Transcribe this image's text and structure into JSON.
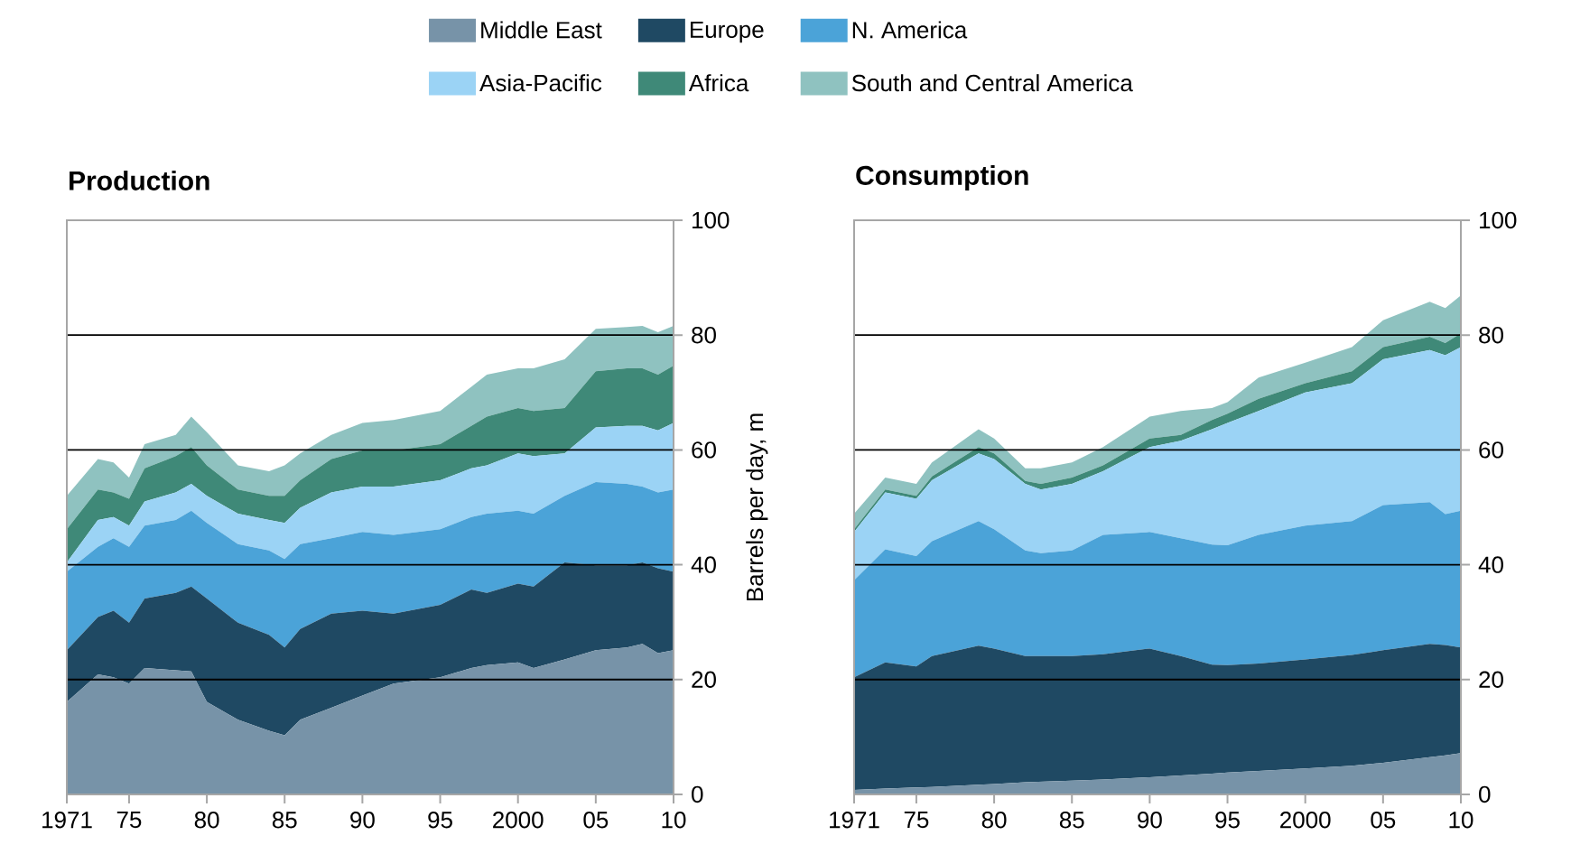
{
  "chart_data": [
    {
      "type": "area",
      "stacked": true,
      "title": "Production",
      "ylabel": "Barrels per day, m",
      "x": [
        1971,
        1973,
        1974,
        1975,
        1976,
        1978,
        1979,
        1980,
        1982,
        1984,
        1985,
        1986,
        1988,
        1990,
        1992,
        1995,
        1997,
        1998,
        2000,
        2001,
        2003,
        2005,
        2007,
        2008,
        2009,
        2010
      ],
      "xlim": [
        1971,
        2010
      ],
      "xticks": [
        1971,
        {
          "value": 1975,
          "label": "75"
        },
        {
          "value": 1980,
          "label": "80"
        },
        {
          "value": 1985,
          "label": "85"
        },
        {
          "value": 1990,
          "label": "90"
        },
        {
          "value": 1995,
          "label": "95"
        },
        2000,
        {
          "value": 2005,
          "label": "05"
        },
        {
          "value": 2010,
          "label": "10"
        }
      ],
      "ylim": [
        0,
        100
      ],
      "yticks": [
        0,
        20,
        40,
        60,
        80,
        100
      ],
      "grid": "y",
      "legend": "top",
      "series": [
        {
          "name": "Middle East",
          "color": "#7793a8",
          "values": [
            16.1,
            20.9,
            20.4,
            19.3,
            22.0,
            21.6,
            21.4,
            16.1,
            13.0,
            11.1,
            10.3,
            13.0,
            15.1,
            17.2,
            19.3,
            20.4,
            22.0,
            22.5,
            23.0,
            22.0,
            23.5,
            25.1,
            25.6,
            26.2,
            24.6,
            25.1
          ]
        },
        {
          "name": "Europe",
          "color": "#1f4963",
          "values": [
            9.0,
            10.0,
            11.6,
            10.6,
            12.1,
            13.5,
            14.8,
            18.0,
            16.9,
            16.7,
            15.3,
            15.8,
            16.4,
            14.8,
            12.2,
            12.6,
            13.7,
            12.6,
            13.7,
            14.2,
            16.9,
            14.8,
            14.3,
            14.2,
            14.8,
            13.7
          ]
        },
        {
          "name": "N. America",
          "color": "#4ba3d8",
          "values": [
            13.7,
            12.2,
            12.6,
            13.2,
            12.7,
            12.7,
            13.2,
            13.2,
            13.7,
            14.7,
            15.4,
            14.8,
            13.1,
            13.7,
            13.7,
            13.2,
            12.6,
            13.8,
            12.7,
            12.7,
            11.6,
            14.5,
            14.2,
            13.2,
            13.2,
            14.3
          ]
        },
        {
          "name": "Asia-Pacific",
          "color": "#9bd3f5",
          "values": [
            1.6,
            4.7,
            3.7,
            3.7,
            4.2,
            4.8,
            4.7,
            4.7,
            5.3,
            5.3,
            6.3,
            6.3,
            8.0,
            7.9,
            8.4,
            8.5,
            8.5,
            8.4,
            10.0,
            10.0,
            7.4,
            9.5,
            10.1,
            10.6,
            10.8,
            11.6
          ]
        },
        {
          "name": "Africa",
          "color": "#3f8978",
          "values": [
            5.8,
            5.3,
            4.3,
            4.7,
            5.8,
            6.3,
            6.4,
            5.3,
            4.2,
            4.2,
            4.7,
            4.8,
            5.8,
            6.3,
            6.3,
            6.3,
            7.4,
            8.5,
            7.9,
            7.9,
            7.9,
            9.8,
            10.0,
            10.0,
            9.7,
            10.0
          ]
        },
        {
          "name": "South and Central America",
          "color": "#8fc2c0",
          "values": [
            5.8,
            5.3,
            5.2,
            3.7,
            4.2,
            3.7,
            5.3,
            5.8,
            4.2,
            4.3,
            5.3,
            4.7,
            4.2,
            4.8,
            5.3,
            5.8,
            6.8,
            7.3,
            6.9,
            7.4,
            8.5,
            7.4,
            7.2,
            7.4,
            7.4,
            6.9
          ]
        }
      ]
    },
    {
      "type": "area",
      "stacked": true,
      "title": "Consumption",
      "x": [
        1971,
        1973,
        1975,
        1976,
        1979,
        1980,
        1982,
        1983,
        1985,
        1987,
        1990,
        1992,
        1994,
        1995,
        1997,
        2000,
        2003,
        2005,
        2008,
        2009,
        2010
      ],
      "xlim": [
        1971,
        2010
      ],
      "xticks": [
        1971,
        {
          "value": 1975,
          "label": "75"
        },
        {
          "value": 1980,
          "label": "80"
        },
        {
          "value": 1985,
          "label": "85"
        },
        {
          "value": 1990,
          "label": "90"
        },
        {
          "value": 1995,
          "label": "95"
        },
        2000,
        {
          "value": 2005,
          "label": "05"
        },
        {
          "value": 2010,
          "label": "10"
        }
      ],
      "ylim": [
        0,
        100
      ],
      "yticks": [
        0,
        20,
        40,
        60,
        80,
        100
      ],
      "grid": "y",
      "series": [
        {
          "color": "#7793a8",
          "values": [
            0.8,
            1.0,
            1.2,
            1.3,
            1.7,
            1.8,
            2.1,
            2.2,
            2.4,
            2.6,
            3.0,
            3.3,
            3.6,
            3.8,
            4.1,
            4.5,
            5.0,
            5.5,
            6.5,
            6.8,
            7.2
          ]
        },
        {
          "color": "#1f4963",
          "values": [
            19.6,
            22.0,
            21.1,
            22.8,
            24.2,
            23.6,
            22.0,
            21.9,
            21.7,
            21.8,
            22.4,
            20.8,
            19.0,
            18.7,
            18.7,
            19.0,
            19.3,
            19.6,
            19.7,
            19.2,
            18.4
          ]
        },
        {
          "color": "#4ba3d8",
          "values": [
            16.9,
            19.7,
            19.2,
            20.0,
            21.7,
            20.8,
            18.4,
            17.9,
            18.4,
            20.8,
            20.3,
            20.5,
            20.9,
            20.9,
            22.4,
            23.3,
            23.3,
            25.3,
            24.7,
            22.8,
            23.8
          ]
        },
        {
          "color": "#9bd3f5",
          "values": [
            8.4,
            9.9,
            10.0,
            10.6,
            11.8,
            12.2,
            11.6,
            11.1,
            11.6,
            11.1,
            14.8,
            17.0,
            20.1,
            21.3,
            21.6,
            23.2,
            24.0,
            25.4,
            26.5,
            27.7,
            28.5
          ]
        },
        {
          "color": "#3f8978",
          "values": [
            0.5,
            0.5,
            0.5,
            0.7,
            1.1,
            1.0,
            0.5,
            1.0,
            1.1,
            1.0,
            1.5,
            1.0,
            1.6,
            1.6,
            2.1,
            1.6,
            2.1,
            2.1,
            2.3,
            2.1,
            2.4
          ]
        },
        {
          "color": "#8fc2c0",
          "values": [
            2.7,
            2.1,
            2.1,
            2.4,
            3.1,
            2.6,
            2.2,
            2.7,
            2.6,
            3.2,
            3.8,
            4.2,
            2.1,
            2.0,
            3.7,
            3.6,
            4.2,
            4.7,
            6.1,
            6.1,
            6.6
          ]
        }
      ]
    }
  ]
}
